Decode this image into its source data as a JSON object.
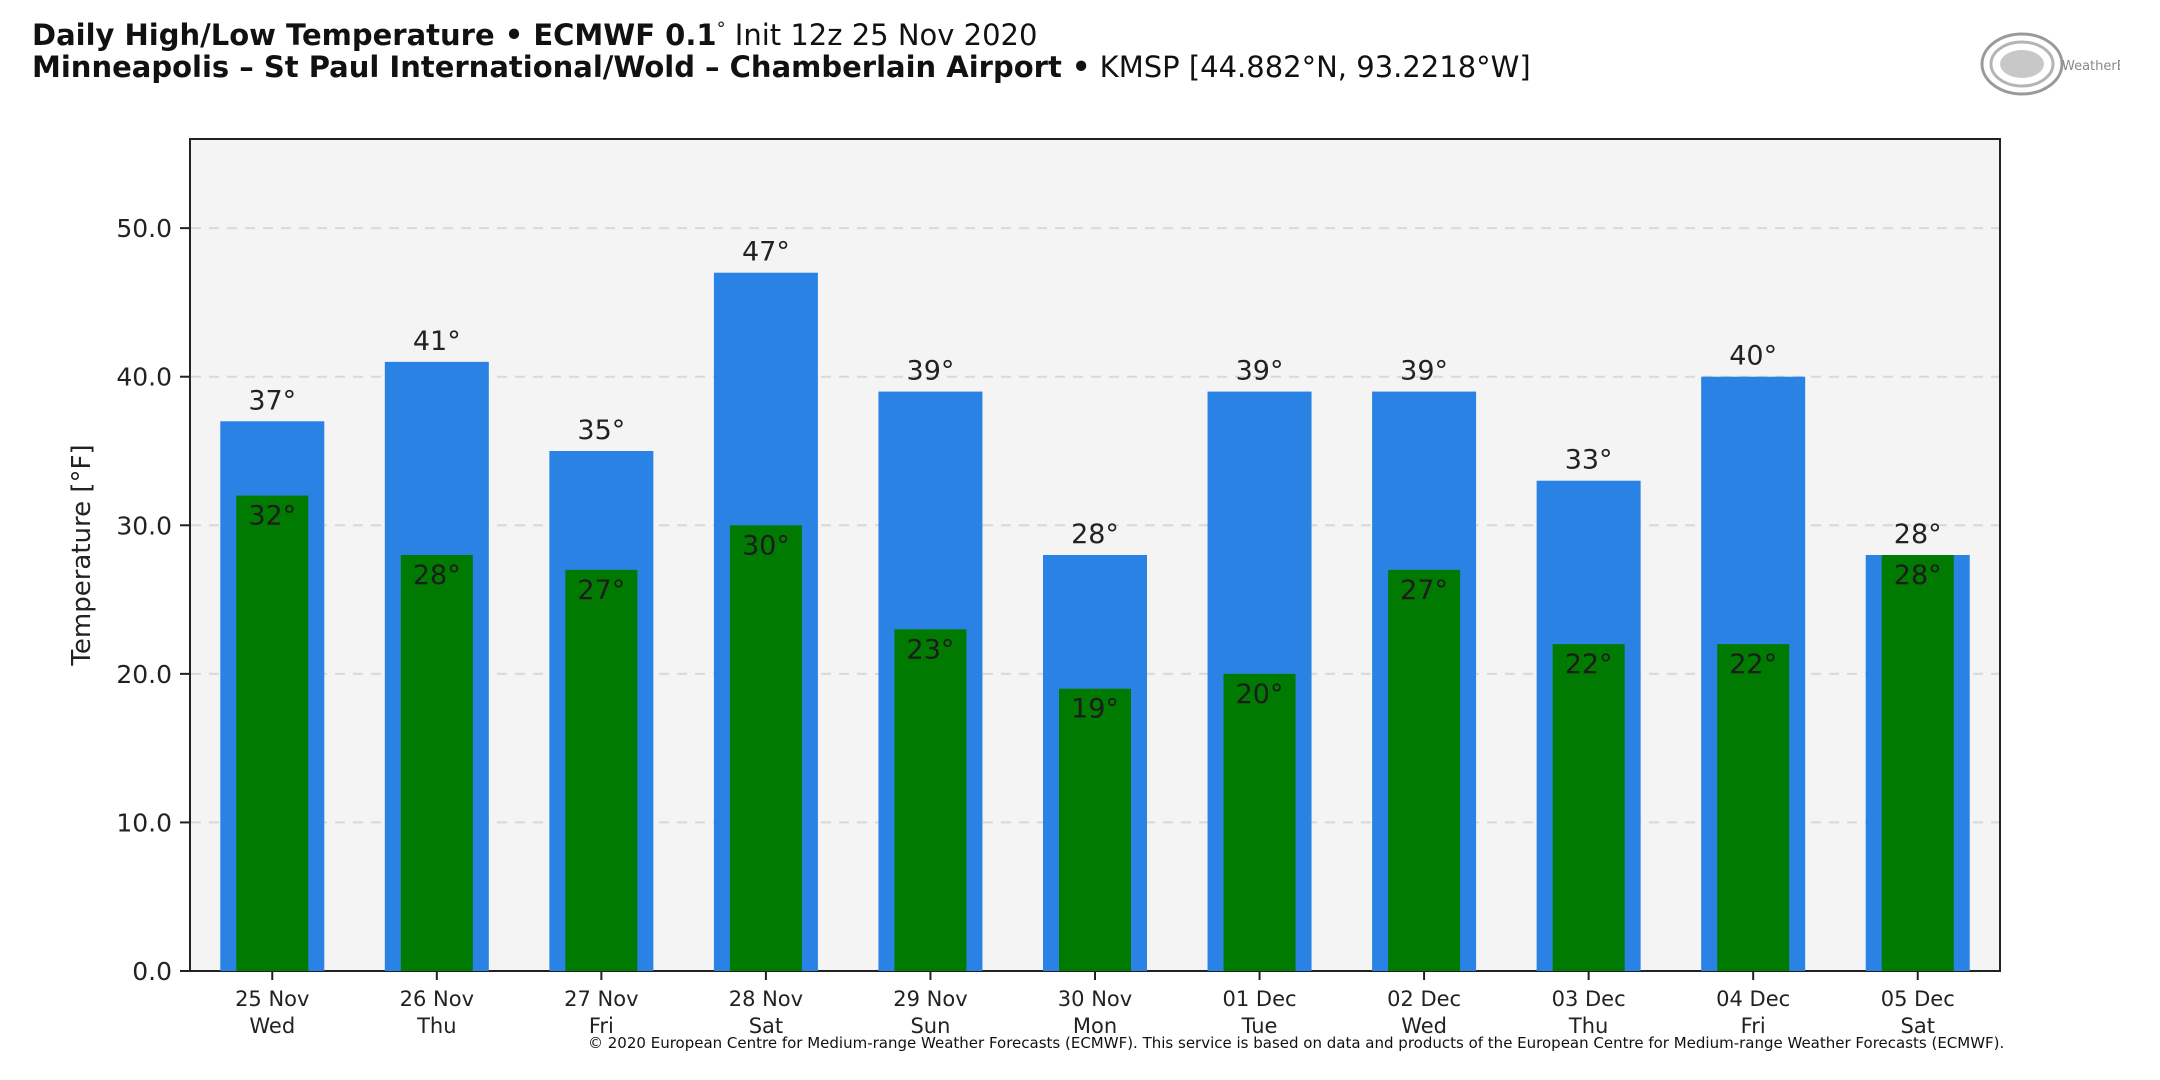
{
  "header": {
    "title_bold": "Daily High/Low Temperature • ECMWF 0.1",
    "title_deg": "°",
    "title_rest": " Init 12z 25 Nov 2020",
    "location_bold": "Minneapolis – St Paul International/Wold – Chamberlain Airport •",
    "location_rest": " KMSP [44.882°N, 93.2218°W]"
  },
  "logo": {
    "text": "WeatherBELL"
  },
  "chart_data": {
    "type": "bar",
    "ylabel": "Temperature [°F]",
    "ylim": [
      0,
      56
    ],
    "yticks": [
      0,
      10,
      20,
      30,
      40,
      50
    ],
    "ytick_labels": [
      "0.0",
      "10.0",
      "20.0",
      "30.0",
      "40.0",
      "50.0"
    ],
    "grid": "horizontal-dashed",
    "categories": [
      [
        "25 Nov",
        "Wed"
      ],
      [
        "26 Nov",
        "Thu"
      ],
      [
        "27 Nov",
        "Fri"
      ],
      [
        "28 Nov",
        "Sat"
      ],
      [
        "29 Nov",
        "Sun"
      ],
      [
        "30 Nov",
        "Mon"
      ],
      [
        "01 Dec",
        "Tue"
      ],
      [
        "02 Dec",
        "Wed"
      ],
      [
        "03 Dec",
        "Thu"
      ],
      [
        "04 Dec",
        "Fri"
      ],
      [
        "05 Dec",
        "Sat"
      ]
    ],
    "series": [
      {
        "key": "high",
        "color": "#2a83e4",
        "values": [
          37,
          41,
          35,
          47,
          39,
          28,
          39,
          39,
          33,
          40,
          28
        ]
      },
      {
        "key": "low",
        "color": "#007a00",
        "values": [
          32,
          28,
          27,
          30,
          23,
          19,
          20,
          27,
          22,
          22,
          28
        ]
      }
    ],
    "label_suffix": "°"
  },
  "footer": {
    "copyright": "© 2020 European Centre for Medium-range Weather Forecasts (ECMWF). This service is based on data and products of the European Centre for Medium-range Weather Forecasts (ECMWF)."
  }
}
